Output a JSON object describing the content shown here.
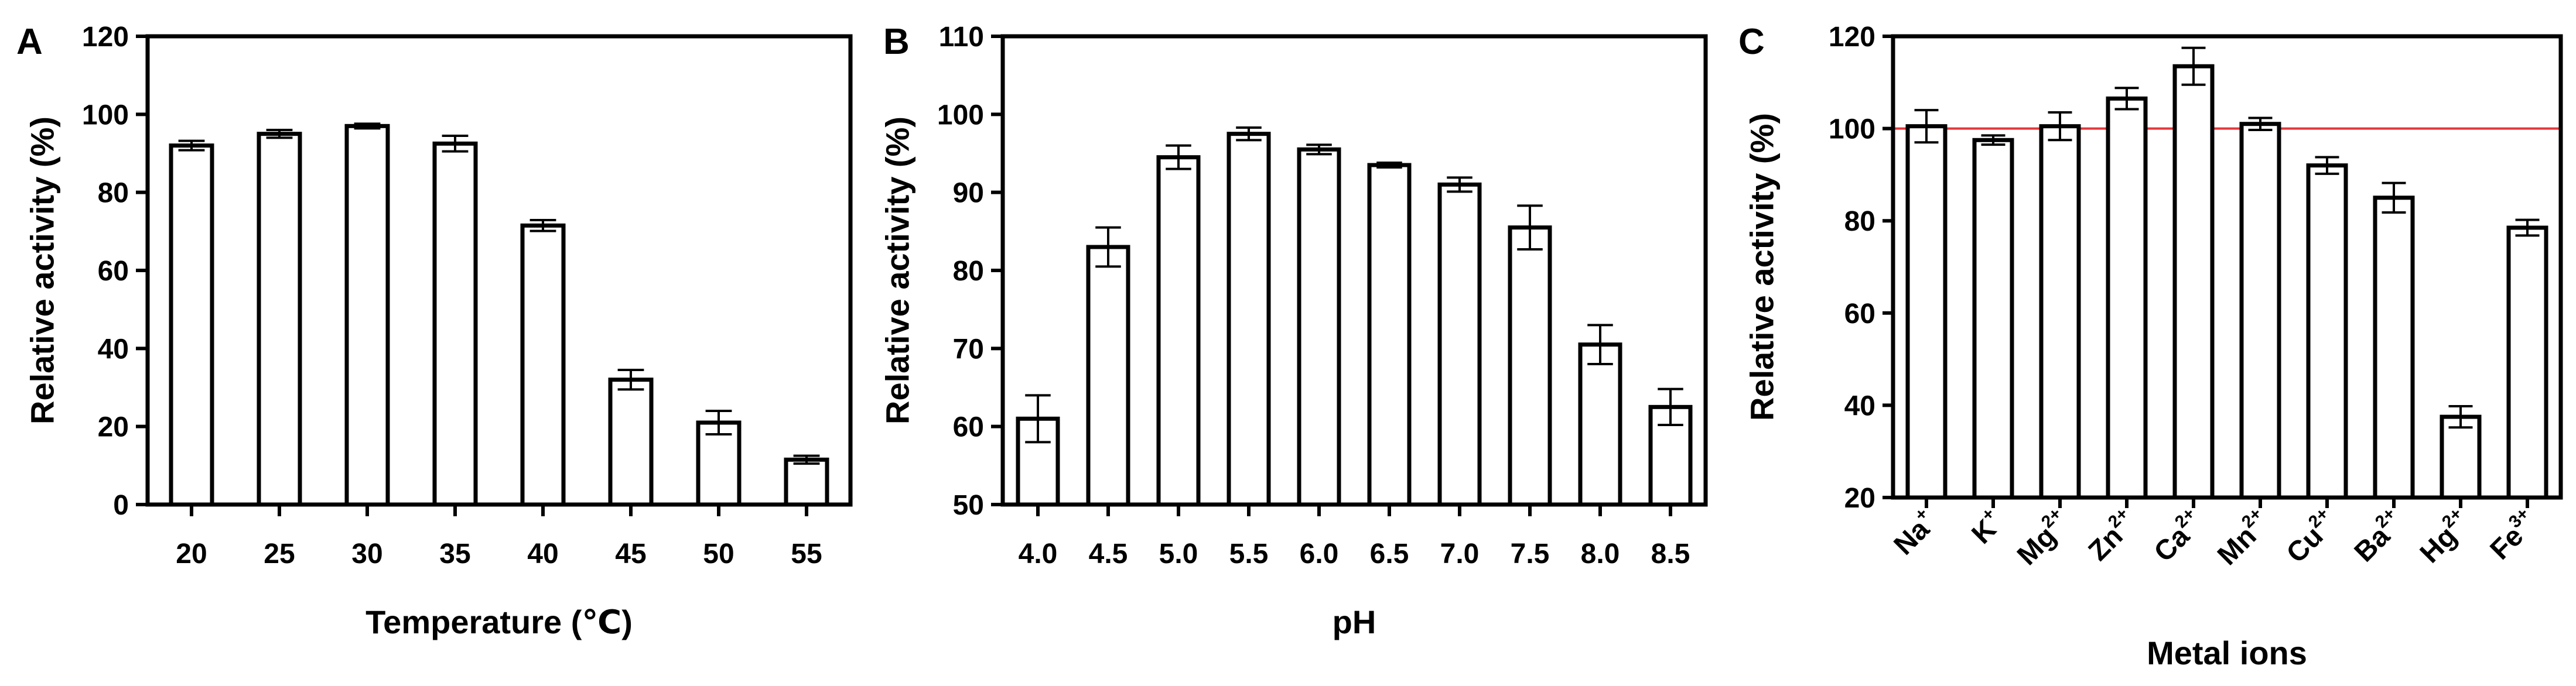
{
  "chart_data": [
    {
      "panel": "A",
      "type": "bar",
      "categories": [
        "20",
        "25",
        "30",
        "35",
        "40",
        "45",
        "50",
        "55"
      ],
      "values": [
        92,
        95,
        97,
        92.5,
        71.5,
        32,
        21,
        11.5
      ],
      "errors": [
        1.2,
        1.0,
        0.6,
        2.0,
        1.4,
        2.5,
        3.0,
        1.0
      ],
      "xlabel": "Temperature (℃)",
      "ylabel": "Relative activity (%)",
      "ylim": [
        0,
        120
      ],
      "yticks": [
        0,
        20,
        40,
        60,
        80,
        100,
        120
      ],
      "grid": false
    },
    {
      "panel": "B",
      "type": "bar",
      "categories": [
        "4.0",
        "4.5",
        "5.0",
        "5.5",
        "6.0",
        "6.5",
        "7.0",
        "7.5",
        "8.0",
        "8.5"
      ],
      "values": [
        61,
        83,
        94.5,
        97.5,
        95.5,
        93.5,
        91,
        85.5,
        70.5,
        62.5
      ],
      "errors": [
        3.0,
        2.5,
        1.5,
        0.8,
        0.6,
        0.3,
        0.9,
        2.8,
        2.5,
        2.3
      ],
      "xlabel": "pH",
      "ylabel": "Relative activity (%)",
      "ylim": [
        50,
        110
      ],
      "yticks": [
        50,
        60,
        70,
        80,
        90,
        100,
        110
      ],
      "grid": false
    },
    {
      "panel": "C",
      "type": "bar",
      "categories": [
        {
          "base": "Na",
          "sup": "+"
        },
        {
          "base": "K",
          "sup": "+"
        },
        {
          "base": "Mg",
          "sup": "2+"
        },
        {
          "base": "Zn",
          "sup": "2+"
        },
        {
          "base": "Ca",
          "sup": "2+"
        },
        {
          "base": "Mn",
          "sup": "2+"
        },
        {
          "base": "Cu",
          "sup": "2+"
        },
        {
          "base": "Ba",
          "sup": "2+"
        },
        {
          "base": "Hg",
          "sup": "2+"
        },
        {
          "base": "Fe",
          "sup": "3+"
        }
      ],
      "values": [
        100.5,
        97.5,
        100.5,
        106.5,
        113.5,
        101,
        92,
        85,
        37.5,
        78.5
      ],
      "errors": [
        3.5,
        1.0,
        3.0,
        2.3,
        4.0,
        1.3,
        1.8,
        3.2,
        2.3,
        1.7
      ],
      "reference_line": {
        "y": 100,
        "color": "#e5383b"
      },
      "xlabel": "Metal ions",
      "ylabel": "Relative activity (%)",
      "ylim": [
        20,
        120
      ],
      "yticks": [
        20,
        40,
        60,
        80,
        100,
        120
      ],
      "grid": false
    }
  ]
}
